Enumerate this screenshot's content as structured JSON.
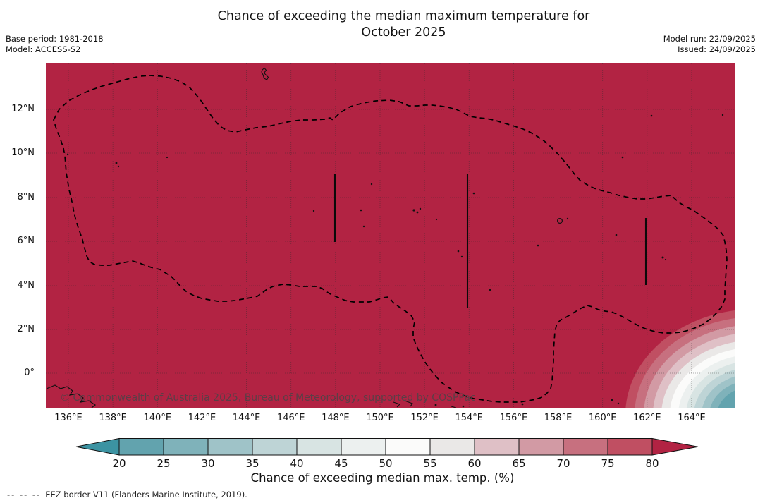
{
  "title": {
    "line1": "Chance of exceeding the median maximum temperature for",
    "line2": "October 2025"
  },
  "meta_left": {
    "base_period": "Base period: 1981-2018",
    "model": "Model: ACCESS-S2"
  },
  "meta_right": {
    "model_run": "Model run: 22/09/2025",
    "issued": "Issued: 24/09/2025"
  },
  "map": {
    "attribution": "© Commonwealth of Australia 2025, Bureau of Meteorology, supported by COSPPac",
    "x_tick_labels": [
      "136°E",
      "138°E",
      "140°E",
      "142°E",
      "144°E",
      "146°E",
      "148°E",
      "150°E",
      "152°E",
      "154°E",
      "156°E",
      "158°E",
      "160°E",
      "162°E",
      "164°E"
    ],
    "y_tick_labels": [
      "12°N",
      "10°N",
      "8°N",
      "6°N",
      "4°N",
      "2°N",
      "0°"
    ],
    "fill_color": "#b22343",
    "gridline_color": "rgba(45,45,45,0.5)",
    "eez_border_color": "#000000"
  },
  "colorbar": {
    "label": "Chance of exceeding median max. temp. (%)",
    "tick_labels": [
      "20",
      "25",
      "30",
      "35",
      "40",
      "45",
      "50",
      "55",
      "60",
      "65",
      "70",
      "75",
      "80"
    ],
    "under_color": "#3c93a2",
    "over_color": "#b22343",
    "band_colors": [
      "#62a3ae",
      "#7fb2ba",
      "#9fc3c8",
      "#bed4d6",
      "#d8e4e3",
      "#ecf0ef",
      "#fbfbfa",
      "#eae8e7",
      "#dfc0c6",
      "#d29aa4",
      "#c7707f",
      "#c04f62"
    ]
  },
  "footnote": {
    "dashes": "--  --  --",
    "text": "EEZ border V11 (Flanders Marine Institute, 2019)."
  },
  "chart_data": {
    "type": "filled_contour_map",
    "variable": "Chance of exceeding median maximum temperature (%)",
    "title": "Chance of exceeding the median maximum temperature for October 2025",
    "lon_ticks_deg_e": [
      136,
      138,
      140,
      142,
      144,
      146,
      148,
      150,
      152,
      154,
      156,
      158,
      160,
      162,
      164
    ],
    "lat_ticks_deg_n": [
      12,
      10,
      8,
      6,
      4,
      2,
      0
    ],
    "contour_levels_percent": [
      20,
      25,
      30,
      35,
      40,
      45,
      50,
      55,
      60,
      65,
      70,
      75,
      80
    ],
    "colormap": "diverging teal (low) to white to crimson (high), arrows below 20 and above 80",
    "field_summary": "Greater than 80% chance over nearly the whole Micronesia domain; concentric contour bands in the far south-east corner (~163-166°E, south of ~2°N) dropping to about 20-25%",
    "overlays": [
      "dashed EEZ outer border loop",
      "three straight vertical EEZ segments near 148°E (6-9°N), 154°E (3-9°N), 162°E (4-7°N)",
      "small island coastlines"
    ]
  }
}
